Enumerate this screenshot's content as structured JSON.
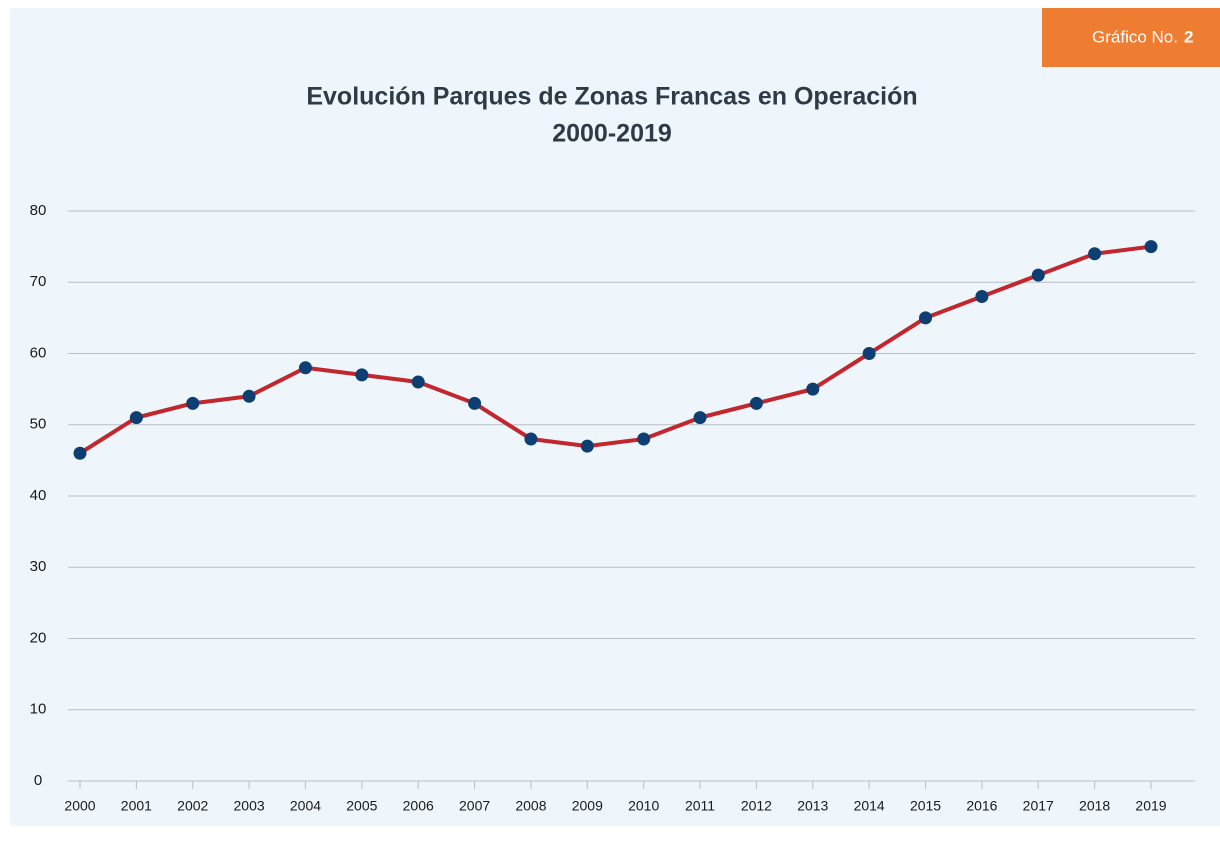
{
  "badge": {
    "text": "Gráfico No.",
    "number": "2"
  },
  "chart_data": {
    "type": "line",
    "title": [
      "Evolución Parques de Zonas Francas en Operación",
      "2000-2019"
    ],
    "categories": [
      "2000",
      "2001",
      "2002",
      "2003",
      "2004",
      "2005",
      "2006",
      "2007",
      "2008",
      "2009",
      "2010",
      "2011",
      "2012",
      "2013",
      "2014",
      "2015",
      "2016",
      "2017",
      "2018",
      "2019"
    ],
    "series": [
      {
        "color": "#c1272d",
        "marker_color": "#0d3f73",
        "values": [
          46,
          51,
          53,
          54,
          58,
          57,
          56,
          53,
          48,
          47,
          48,
          51,
          53,
          55,
          60,
          65,
          68,
          71,
          74,
          75
        ]
      }
    ],
    "ylim": [
      0,
      80
    ],
    "yticks": [
      0,
      10,
      20,
      30,
      40,
      50,
      60,
      70,
      80
    ],
    "grid": true
  }
}
